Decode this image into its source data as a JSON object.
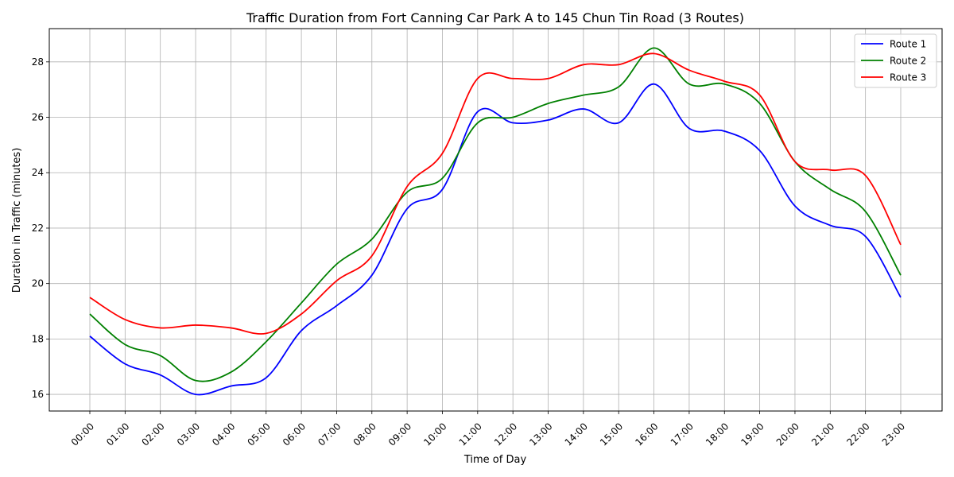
{
  "chart_data": {
    "type": "line",
    "title": "Traffic Duration from Fort Canning Car Park A to 145 Chun Tin Road (3 Routes)",
    "xlabel": "Time of Day",
    "ylabel": "Duration in Traffic (minutes)",
    "categories": [
      "00:00",
      "01:00",
      "02:00",
      "03:00",
      "04:00",
      "05:00",
      "06:00",
      "07:00",
      "08:00",
      "09:00",
      "10:00",
      "11:00",
      "12:00",
      "13:00",
      "14:00",
      "15:00",
      "16:00",
      "17:00",
      "18:00",
      "19:00",
      "20:00",
      "21:00",
      "22:00",
      "23:00"
    ],
    "ylim": [
      15.4,
      29.2
    ],
    "yticks": [
      16,
      18,
      20,
      22,
      24,
      26,
      28
    ],
    "grid": true,
    "legend_position": "top-right",
    "series": [
      {
        "name": "Route 1",
        "color": "#0000ff",
        "values": [
          18.1,
          17.1,
          16.7,
          16.0,
          16.3,
          16.6,
          18.3,
          19.2,
          20.3,
          22.7,
          23.4,
          26.2,
          25.8,
          25.9,
          26.3,
          25.8,
          27.2,
          25.6,
          25.5,
          24.8,
          22.8,
          22.1,
          21.7,
          19.5
        ]
      },
      {
        "name": "Route 2",
        "color": "#008000",
        "values": [
          18.9,
          17.8,
          17.4,
          16.5,
          16.8,
          17.9,
          19.3,
          20.7,
          21.6,
          23.3,
          23.8,
          25.8,
          26.0,
          26.5,
          26.8,
          27.1,
          28.5,
          27.2,
          27.2,
          26.5,
          24.4,
          23.4,
          22.6,
          20.3
        ]
      },
      {
        "name": "Route 3",
        "color": "#ff0000",
        "values": [
          19.5,
          18.7,
          18.4,
          18.5,
          18.4,
          18.2,
          18.9,
          20.1,
          21.0,
          23.5,
          24.7,
          27.4,
          27.4,
          27.4,
          27.9,
          27.9,
          28.3,
          27.7,
          27.3,
          26.8,
          24.4,
          24.1,
          23.9,
          21.4
        ]
      }
    ]
  }
}
